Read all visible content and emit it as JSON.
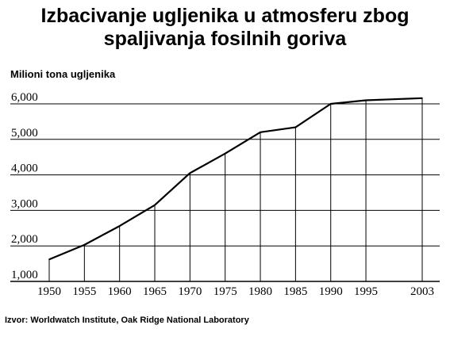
{
  "title_line1": "Izbacivanje ugljenika u atmosferu zbog",
  "title_line2": "spaljivanja fosilnih goriva",
  "source": "Izvor: Worldwatch Institute, Oak Ridge National Laboratory",
  "chart_data": {
    "type": "line",
    "title": "Izbacivanje ugljenika u atmosferu zbog spaljivanja fosilnih goriva",
    "ylabel": "Milioni tona ugljenika",
    "xlabel": "",
    "x": [
      1950,
      1955,
      1960,
      1965,
      1970,
      1975,
      1980,
      1985,
      1990,
      1995,
      2003
    ],
    "series": [
      {
        "values": [
          1620,
          2030,
          2560,
          3150,
          4050,
          4600,
          5200,
          5340,
          6000,
          6100,
          6160
        ]
      }
    ],
    "xticks": [
      1950,
      1955,
      1960,
      1965,
      1970,
      1975,
      1980,
      1985,
      1990,
      1995,
      2003
    ],
    "xtick_labels": [
      "1950",
      "1955",
      "1960",
      "1965",
      "1970",
      "1975",
      "1980",
      "1985",
      "1990",
      "1995",
      "2003"
    ],
    "yticks": [
      1000,
      2000,
      3000,
      4000,
      5000,
      6000
    ],
    "ytick_labels": [
      "1,000",
      "2,000",
      "3,000",
      "4,000",
      "5,000",
      "6,000"
    ],
    "ylim": [
      1000,
      6000
    ],
    "grid": true,
    "line_color": "#000000"
  }
}
